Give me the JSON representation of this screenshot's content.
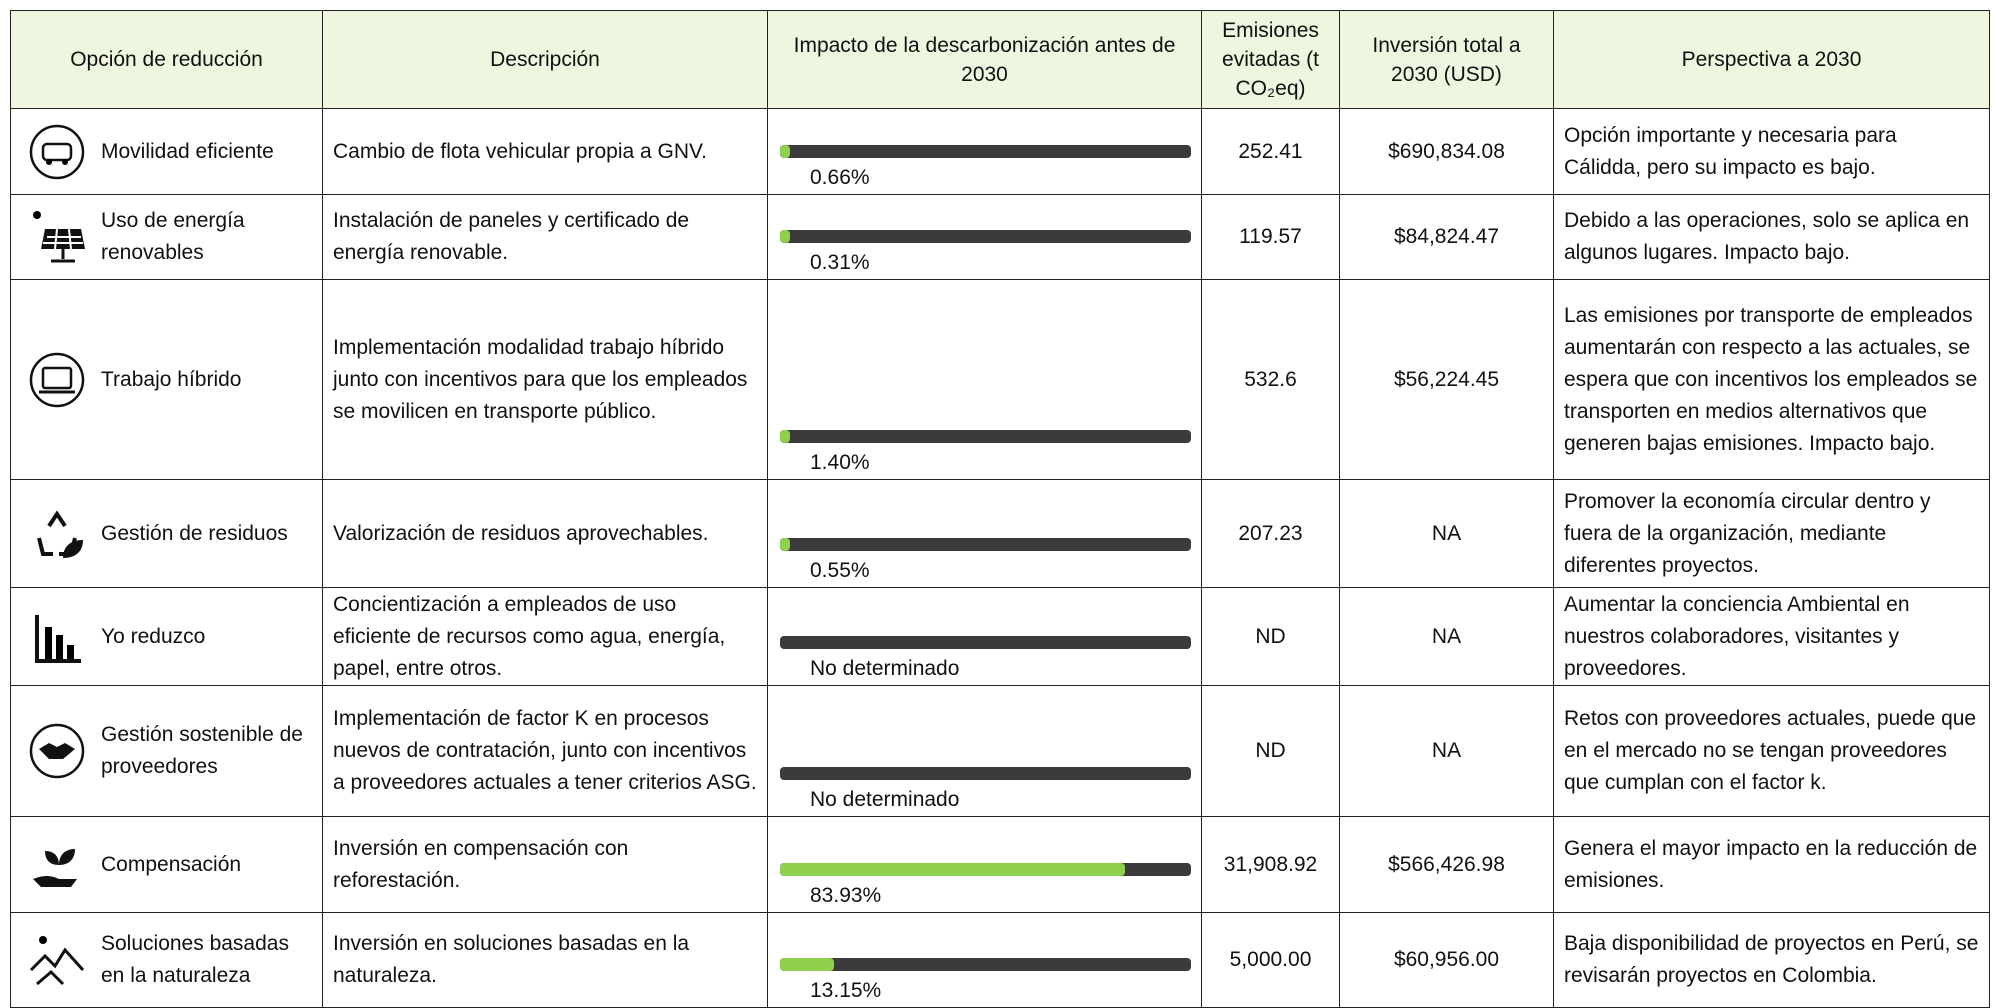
{
  "table": {
    "header": [
      "Opción de reducción",
      "Descripción",
      "Impacto de la descarbonización antes de 2030",
      "Emisiones evitadas (t CO₂eq)",
      "Inversión total a 2030 (USD)",
      "Perspectiva a 2030"
    ],
    "impact_range": [
      0,
      100
    ],
    "rows": [
      {
        "option": "Movilidad eficiente",
        "description": "Cambio de flota vehicular propia a GNV.",
        "impact": 0.66,
        "impact_label": "0.66%",
        "emissions": "252.41",
        "investment": "$690,834.08",
        "outlook": "Opción importante y necesaria para Cálidda, pero su impacto es bajo."
      },
      {
        "option": "Uso de energía renovables",
        "description": "Instalación de paneles y certificado de energía renovable.",
        "impact": 0.31,
        "impact_label": "0.31%",
        "emissions": "119.57",
        "investment": "$84,824.47",
        "outlook": "Debido a las operaciones, solo se aplica en algunos lugares. Impacto bajo."
      },
      {
        "option": "Trabajo híbrido",
        "description": "Implementación modalidad trabajo híbrido junto con incentivos para que los empleados se movilicen en transporte público.",
        "impact": 1.4,
        "impact_label": "1.40%",
        "emissions": "532.6",
        "investment": "$56,224.45",
        "outlook": "Las emisiones por transporte de empleados aumentarán con respecto a las actuales, se espera que con incentivos los empleados se transporten en medios alternativos que generen bajas emisiones. Impacto bajo."
      },
      {
        "option": "Gestión de residuos",
        "description": "Valorización de residuos aprovechables.",
        "impact": 0.55,
        "impact_label": "0.55%",
        "emissions": "207.23",
        "investment": "NA",
        "outlook": "Promover la economía circular dentro y fuera de la organización, mediante diferentes proyectos."
      },
      {
        "option": "Yo reduzco",
        "description": "Concientización a empleados de uso eficiente de recursos como agua, energía, papel, entre otros.",
        "impact": null,
        "impact_label": "No determinado",
        "emissions": "ND",
        "investment": "NA",
        "outlook": "Aumentar la conciencia Ambiental en nuestros colaboradores, visitantes y proveedores."
      },
      {
        "option": "Gestión sostenible de proveedores",
        "description": "Implementación de factor K en procesos nuevos de contratación, junto con incentivos a proveedores actuales a tener criterios ASG.",
        "impact": null,
        "impact_label": "No determinado",
        "emissions": "ND",
        "investment": "NA",
        "outlook": "Retos con proveedores actuales, puede que en el mercado no se tengan proveedores que cumplan con el factor k."
      },
      {
        "option": "Compensación",
        "description": "Inversión en compensación con reforestación.",
        "impact": 83.93,
        "impact_label": "83.93%",
        "emissions": "31,908.92",
        "investment": "$566,426.98",
        "outlook": "Genera el mayor impacto en la reducción de emisiones."
      },
      {
        "option": "Soluciones basadas en la naturaleza",
        "description": "Inversión en soluciones basadas en la naturaleza.",
        "impact": 13.15,
        "impact_label": "13.15%",
        "emissions": "5,000.00",
        "investment": "$60,956.00",
        "outlook": "Baja disponibilidad de proyectos en Perú, se revisarán proyectos en Colombia."
      }
    ]
  }
}
